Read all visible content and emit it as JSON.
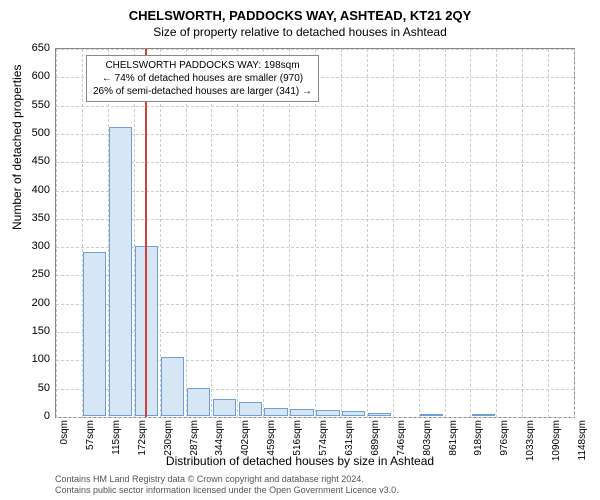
{
  "title": "CHELSWORTH, PADDOCKS WAY, ASHTEAD, KT21 2QY",
  "subtitle": "Size of property relative to detached houses in Ashtead",
  "ylabel": "Number of detached properties",
  "xlabel": "Distribution of detached houses by size in Ashtead",
  "chart": {
    "type": "histogram",
    "ylim": [
      0,
      650
    ],
    "ytick_step": 50,
    "yticks": [
      0,
      50,
      100,
      150,
      200,
      250,
      300,
      350,
      400,
      450,
      500,
      550,
      600,
      650
    ],
    "xticks": [
      "0sqm",
      "57sqm",
      "115sqm",
      "172sqm",
      "230sqm",
      "287sqm",
      "344sqm",
      "402sqm",
      "459sqm",
      "516sqm",
      "574sqm",
      "631sqm",
      "689sqm",
      "746sqm",
      "803sqm",
      "861sqm",
      "918sqm",
      "976sqm",
      "1033sqm",
      "1090sqm",
      "1148sqm"
    ],
    "bar_values": [
      0,
      290,
      510,
      300,
      105,
      50,
      30,
      25,
      15,
      12,
      10,
      8,
      5,
      0,
      3,
      0,
      2,
      0,
      0,
      0,
      0
    ],
    "bar_color": "#d7e6f5",
    "bar_border": "#6f9fd8",
    "background_color": "#ffffff",
    "grid_color": "#cccccc",
    "marker_x_index": 3.45,
    "marker_color": "#d43f3a",
    "bar_width_ratio": 0.9
  },
  "annotation": {
    "line1": "CHELSWORTH PADDOCKS WAY: 198sqm",
    "line2": "← 74% of detached houses are smaller (970)",
    "line3": "26% of semi-detached houses are larger (341) →"
  },
  "footer": {
    "line1": "Contains HM Land Registry data © Crown copyright and database right 2024.",
    "line2": "Contains public sector information licensed under the Open Government Licence v3.0."
  }
}
